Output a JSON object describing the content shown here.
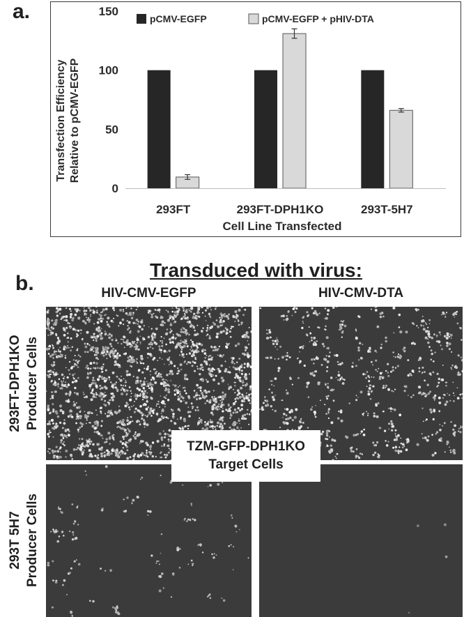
{
  "panel_a_label": "a.",
  "panel_b_label": "b.",
  "chart_data": {
    "type": "bar",
    "categories": [
      "293FT",
      "293FT-DPH1KO",
      "293T-5H7"
    ],
    "series": [
      {
        "name": "pCMV-EGFP",
        "values": [
          100,
          100,
          100
        ],
        "errors": [
          0,
          0,
          0
        ],
        "color": "#262626"
      },
      {
        "name": "pCMV-EGFP + pHIV-DTA",
        "values": [
          9.5,
          131,
          66
        ],
        "errors": [
          2,
          4,
          1.5
        ],
        "color": "#d9d9d9"
      }
    ],
    "xlabel": "Cell Line Transfected",
    "ylabel_line1": "Transfection Efficiency",
    "ylabel_line2": "Relative to pCMV-EGFP",
    "ylim": [
      0,
      150
    ],
    "yticks": [
      0,
      50,
      100,
      150
    ],
    "grid": false,
    "legend_position": "top"
  },
  "panel_b": {
    "title": "Transduced with virus:",
    "col_left": "HIV-CMV-EGFP",
    "col_right": "HIV-CMV-DTA",
    "row_top_line1": "293FT-DPH1KO",
    "row_top_line2": "Producer Cells",
    "row_bottom_line1": "293T 5H7",
    "row_bottom_line2": "Producer Cells",
    "center_label_line1": "TZM-GFP-DPH1KO",
    "center_label_line2": "Target Cells"
  }
}
